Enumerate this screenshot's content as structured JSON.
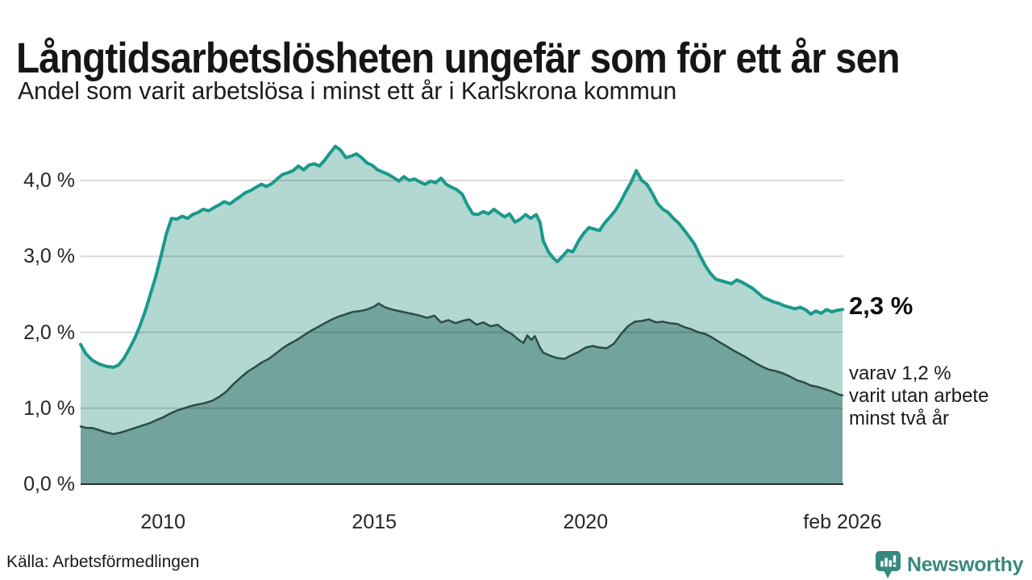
{
  "header": {
    "title": "Långtidsarbetslösheten ungefär som för ett år sen",
    "subtitle": "Andel som varit arbetslösa i minst ett år i Karlskrona kommun"
  },
  "annotations": {
    "latest_total": "2,3 %",
    "secondary_line1": "varav 1,2 %",
    "secondary_line2": "varit utan arbete",
    "secondary_line3": "minst två år"
  },
  "footer": {
    "source": "Källa: Arbetsförmedlingen",
    "brand": "Newsworthy"
  },
  "colors": {
    "accent_line": "#1a998b",
    "accent_fill": "#b2d8d1",
    "dark_line": "#2b4c47",
    "dark_fill": "#72a39c",
    "grid": "rgba(0,0,0,0.145)",
    "baseline": "#2e2e2e",
    "brand_teal": "#38897d"
  },
  "chart_data": {
    "type": "area",
    "title": "Långtidsarbetslösheten ungefär som för ett år sen",
    "subtitle": "Andel som varit arbetslösa i minst ett år i Karlskrona kommun",
    "xlabel": "",
    "ylabel": "",
    "x_unit": "decimal_year",
    "xlim": [
      2008.05,
      2026.1
    ],
    "ylim": [
      0,
      4.75
    ],
    "grid": true,
    "legend_position": "right-annotations",
    "y_ticks": [
      {
        "value": 0,
        "label": "0,0 %"
      },
      {
        "value": 1,
        "label": "1,0 %"
      },
      {
        "value": 2,
        "label": "2,0 %"
      },
      {
        "value": 3,
        "label": "3,0 %"
      },
      {
        "value": 4,
        "label": "4,0 %"
      }
    ],
    "x_ticks": [
      {
        "value": 2010,
        "label": "2010"
      },
      {
        "value": 2015,
        "label": "2015"
      },
      {
        "value": 2020,
        "label": "2020"
      },
      {
        "value": 2026.08,
        "label": "feb 2026"
      }
    ],
    "series": [
      {
        "name": "Arbetslösa minst ett år",
        "latest_value_pct": 2.3,
        "points": [
          [
            2008.05,
            1.84
          ],
          [
            2008.17,
            1.72
          ],
          [
            2008.33,
            1.63
          ],
          [
            2008.5,
            1.58
          ],
          [
            2008.67,
            1.55
          ],
          [
            2008.83,
            1.54
          ],
          [
            2008.95,
            1.57
          ],
          [
            2009.08,
            1.66
          ],
          [
            2009.2,
            1.78
          ],
          [
            2009.33,
            1.92
          ],
          [
            2009.45,
            2.08
          ],
          [
            2009.58,
            2.28
          ],
          [
            2009.7,
            2.5
          ],
          [
            2009.83,
            2.74
          ],
          [
            2009.95,
            3.0
          ],
          [
            2010.08,
            3.3
          ],
          [
            2010.2,
            3.5
          ],
          [
            2010.33,
            3.49
          ],
          [
            2010.45,
            3.53
          ],
          [
            2010.58,
            3.5
          ],
          [
            2010.7,
            3.55
          ],
          [
            2010.83,
            3.58
          ],
          [
            2010.95,
            3.62
          ],
          [
            2011.08,
            3.6
          ],
          [
            2011.2,
            3.64
          ],
          [
            2011.33,
            3.68
          ],
          [
            2011.45,
            3.72
          ],
          [
            2011.58,
            3.69
          ],
          [
            2011.7,
            3.74
          ],
          [
            2011.83,
            3.79
          ],
          [
            2011.95,
            3.84
          ],
          [
            2012.08,
            3.87
          ],
          [
            2012.2,
            3.91
          ],
          [
            2012.33,
            3.95
          ],
          [
            2012.45,
            3.92
          ],
          [
            2012.58,
            3.96
          ],
          [
            2012.7,
            4.02
          ],
          [
            2012.83,
            4.08
          ],
          [
            2012.95,
            4.1
          ],
          [
            2013.08,
            4.13
          ],
          [
            2013.2,
            4.19
          ],
          [
            2013.33,
            4.14
          ],
          [
            2013.45,
            4.2
          ],
          [
            2013.58,
            4.22
          ],
          [
            2013.7,
            4.19
          ],
          [
            2013.83,
            4.27
          ],
          [
            2013.95,
            4.36
          ],
          [
            2014.08,
            4.45
          ],
          [
            2014.2,
            4.4
          ],
          [
            2014.33,
            4.3
          ],
          [
            2014.45,
            4.32
          ],
          [
            2014.58,
            4.35
          ],
          [
            2014.7,
            4.3
          ],
          [
            2014.83,
            4.23
          ],
          [
            2014.95,
            4.2
          ],
          [
            2015.08,
            4.14
          ],
          [
            2015.2,
            4.11
          ],
          [
            2015.33,
            4.08
          ],
          [
            2015.45,
            4.04
          ],
          [
            2015.58,
            3.99
          ],
          [
            2015.7,
            4.05
          ],
          [
            2015.83,
            4.0
          ],
          [
            2015.95,
            4.02
          ],
          [
            2016.08,
            3.98
          ],
          [
            2016.2,
            3.95
          ],
          [
            2016.33,
            3.99
          ],
          [
            2016.45,
            3.97
          ],
          [
            2016.58,
            4.03
          ],
          [
            2016.7,
            3.95
          ],
          [
            2016.83,
            3.91
          ],
          [
            2016.95,
            3.88
          ],
          [
            2017.08,
            3.82
          ],
          [
            2017.2,
            3.68
          ],
          [
            2017.33,
            3.56
          ],
          [
            2017.45,
            3.55
          ],
          [
            2017.58,
            3.59
          ],
          [
            2017.7,
            3.56
          ],
          [
            2017.83,
            3.62
          ],
          [
            2017.95,
            3.57
          ],
          [
            2018.08,
            3.52
          ],
          [
            2018.2,
            3.56
          ],
          [
            2018.33,
            3.45
          ],
          [
            2018.45,
            3.49
          ],
          [
            2018.58,
            3.55
          ],
          [
            2018.7,
            3.5
          ],
          [
            2018.83,
            3.55
          ],
          [
            2018.92,
            3.45
          ],
          [
            2019.0,
            3.2
          ],
          [
            2019.13,
            3.05
          ],
          [
            2019.25,
            2.97
          ],
          [
            2019.33,
            2.93
          ],
          [
            2019.45,
            3.0
          ],
          [
            2019.58,
            3.08
          ],
          [
            2019.7,
            3.06
          ],
          [
            2019.83,
            3.2
          ],
          [
            2019.95,
            3.3
          ],
          [
            2020.08,
            3.38
          ],
          [
            2020.2,
            3.36
          ],
          [
            2020.33,
            3.34
          ],
          [
            2020.45,
            3.44
          ],
          [
            2020.58,
            3.52
          ],
          [
            2020.7,
            3.6
          ],
          [
            2020.83,
            3.72
          ],
          [
            2020.95,
            3.85
          ],
          [
            2021.08,
            3.98
          ],
          [
            2021.2,
            4.13
          ],
          [
            2021.33,
            4.0
          ],
          [
            2021.45,
            3.95
          ],
          [
            2021.58,
            3.83
          ],
          [
            2021.7,
            3.7
          ],
          [
            2021.83,
            3.62
          ],
          [
            2021.95,
            3.58
          ],
          [
            2022.08,
            3.5
          ],
          [
            2022.2,
            3.44
          ],
          [
            2022.33,
            3.35
          ],
          [
            2022.45,
            3.26
          ],
          [
            2022.58,
            3.16
          ],
          [
            2022.7,
            3.02
          ],
          [
            2022.83,
            2.88
          ],
          [
            2022.95,
            2.78
          ],
          [
            2023.08,
            2.7
          ],
          [
            2023.2,
            2.68
          ],
          [
            2023.33,
            2.66
          ],
          [
            2023.45,
            2.64
          ],
          [
            2023.58,
            2.69
          ],
          [
            2023.7,
            2.66
          ],
          [
            2023.83,
            2.62
          ],
          [
            2023.95,
            2.58
          ],
          [
            2024.08,
            2.52
          ],
          [
            2024.2,
            2.46
          ],
          [
            2024.33,
            2.43
          ],
          [
            2024.45,
            2.4
          ],
          [
            2024.58,
            2.38
          ],
          [
            2024.7,
            2.35
          ],
          [
            2024.83,
            2.33
          ],
          [
            2024.95,
            2.31
          ],
          [
            2025.08,
            2.33
          ],
          [
            2025.2,
            2.3
          ],
          [
            2025.33,
            2.24
          ],
          [
            2025.45,
            2.28
          ],
          [
            2025.58,
            2.25
          ],
          [
            2025.7,
            2.3
          ],
          [
            2025.83,
            2.27
          ],
          [
            2025.95,
            2.29
          ],
          [
            2026.08,
            2.3
          ]
        ]
      },
      {
        "name": "varav utan arbete minst två år",
        "latest_value_pct": 1.2,
        "points": [
          [
            2008.05,
            0.76
          ],
          [
            2008.2,
            0.74
          ],
          [
            2008.33,
            0.74
          ],
          [
            2008.5,
            0.71
          ],
          [
            2008.67,
            0.68
          ],
          [
            2008.83,
            0.66
          ],
          [
            2009.0,
            0.68
          ],
          [
            2009.17,
            0.71
          ],
          [
            2009.33,
            0.74
          ],
          [
            2009.5,
            0.77
          ],
          [
            2009.67,
            0.8
          ],
          [
            2009.83,
            0.84
          ],
          [
            2010.0,
            0.88
          ],
          [
            2010.17,
            0.93
          ],
          [
            2010.33,
            0.97
          ],
          [
            2010.5,
            1.0
          ],
          [
            2010.67,
            1.03
          ],
          [
            2010.83,
            1.05
          ],
          [
            2011.0,
            1.07
          ],
          [
            2011.17,
            1.1
          ],
          [
            2011.33,
            1.15
          ],
          [
            2011.5,
            1.22
          ],
          [
            2011.67,
            1.32
          ],
          [
            2011.83,
            1.4
          ],
          [
            2012.0,
            1.48
          ],
          [
            2012.17,
            1.54
          ],
          [
            2012.33,
            1.6
          ],
          [
            2012.5,
            1.65
          ],
          [
            2012.67,
            1.72
          ],
          [
            2012.83,
            1.79
          ],
          [
            2013.0,
            1.85
          ],
          [
            2013.17,
            1.9
          ],
          [
            2013.33,
            1.96
          ],
          [
            2013.5,
            2.02
          ],
          [
            2013.67,
            2.07
          ],
          [
            2013.83,
            2.12
          ],
          [
            2014.0,
            2.17
          ],
          [
            2014.17,
            2.21
          ],
          [
            2014.33,
            2.24
          ],
          [
            2014.5,
            2.27
          ],
          [
            2014.67,
            2.28
          ],
          [
            2014.83,
            2.3
          ],
          [
            2015.0,
            2.34
          ],
          [
            2015.1,
            2.38
          ],
          [
            2015.25,
            2.33
          ],
          [
            2015.42,
            2.3
          ],
          [
            2015.58,
            2.28
          ],
          [
            2015.75,
            2.26
          ],
          [
            2015.92,
            2.24
          ],
          [
            2016.08,
            2.22
          ],
          [
            2016.25,
            2.19
          ],
          [
            2016.42,
            2.22
          ],
          [
            2016.58,
            2.13
          ],
          [
            2016.75,
            2.16
          ],
          [
            2016.92,
            2.12
          ],
          [
            2017.08,
            2.15
          ],
          [
            2017.25,
            2.17
          ],
          [
            2017.42,
            2.1
          ],
          [
            2017.58,
            2.13
          ],
          [
            2017.75,
            2.08
          ],
          [
            2017.92,
            2.1
          ],
          [
            2018.08,
            2.03
          ],
          [
            2018.25,
            1.98
          ],
          [
            2018.42,
            1.9
          ],
          [
            2018.53,
            1.86
          ],
          [
            2018.62,
            1.96
          ],
          [
            2018.72,
            1.9
          ],
          [
            2018.8,
            1.95
          ],
          [
            2018.92,
            1.8
          ],
          [
            2019.0,
            1.73
          ],
          [
            2019.17,
            1.69
          ],
          [
            2019.33,
            1.66
          ],
          [
            2019.5,
            1.65
          ],
          [
            2019.67,
            1.7
          ],
          [
            2019.83,
            1.74
          ],
          [
            2020.0,
            1.8
          ],
          [
            2020.17,
            1.82
          ],
          [
            2020.33,
            1.8
          ],
          [
            2020.5,
            1.79
          ],
          [
            2020.67,
            1.85
          ],
          [
            2020.83,
            1.97
          ],
          [
            2021.0,
            2.08
          ],
          [
            2021.17,
            2.14
          ],
          [
            2021.33,
            2.15
          ],
          [
            2021.5,
            2.17
          ],
          [
            2021.67,
            2.13
          ],
          [
            2021.83,
            2.14
          ],
          [
            2022.0,
            2.12
          ],
          [
            2022.17,
            2.11
          ],
          [
            2022.33,
            2.07
          ],
          [
            2022.5,
            2.04
          ],
          [
            2022.67,
            2.0
          ],
          [
            2022.83,
            1.98
          ],
          [
            2023.0,
            1.93
          ],
          [
            2023.17,
            1.87
          ],
          [
            2023.33,
            1.82
          ],
          [
            2023.5,
            1.76
          ],
          [
            2023.67,
            1.71
          ],
          [
            2023.83,
            1.66
          ],
          [
            2024.0,
            1.6
          ],
          [
            2024.17,
            1.55
          ],
          [
            2024.33,
            1.51
          ],
          [
            2024.5,
            1.49
          ],
          [
            2024.67,
            1.46
          ],
          [
            2024.83,
            1.42
          ],
          [
            2025.0,
            1.37
          ],
          [
            2025.17,
            1.34
          ],
          [
            2025.33,
            1.3
          ],
          [
            2025.5,
            1.28
          ],
          [
            2025.67,
            1.25
          ],
          [
            2025.83,
            1.22
          ],
          [
            2026.0,
            1.18
          ],
          [
            2026.08,
            1.17
          ]
        ]
      }
    ]
  }
}
